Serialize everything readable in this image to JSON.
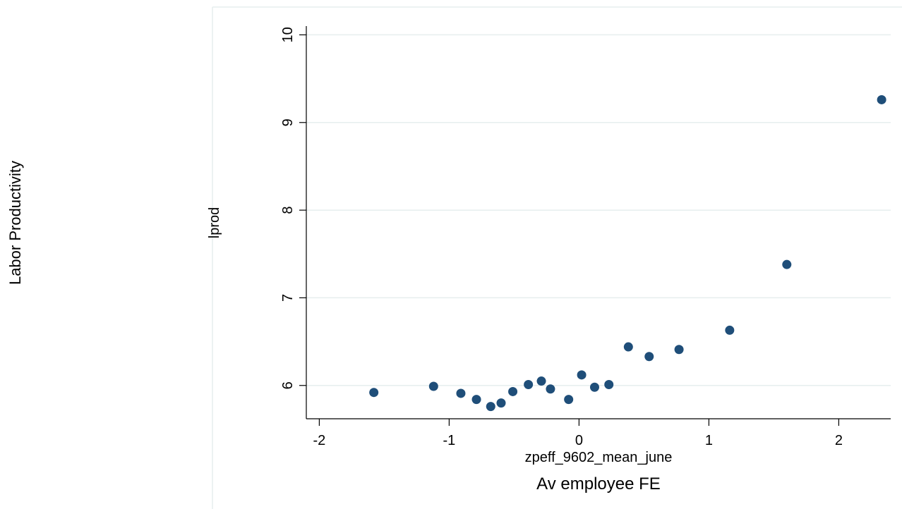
{
  "outer_ylabel": "Labor Productivity",
  "outer_xlabel": "Av employee FE",
  "chart_data": {
    "type": "scatter",
    "title": "",
    "xlabel": "zpeff_9602_mean_june",
    "ylabel": "lprod",
    "xlim": [
      -2.1,
      2.4
    ],
    "ylim": [
      5.62,
      10.1
    ],
    "xticks": [
      -2,
      -1,
      0,
      1,
      2
    ],
    "yticks": [
      6,
      7,
      8,
      9,
      10
    ],
    "grid": "horizontal",
    "marker_color": "#1f4e79",
    "grid_color": "#e6eeee",
    "points": [
      {
        "x": -1.58,
        "y": 5.92
      },
      {
        "x": -1.12,
        "y": 5.99
      },
      {
        "x": -0.91,
        "y": 5.91
      },
      {
        "x": -0.79,
        "y": 5.84
      },
      {
        "x": -0.68,
        "y": 5.76
      },
      {
        "x": -0.6,
        "y": 5.8
      },
      {
        "x": -0.51,
        "y": 5.93
      },
      {
        "x": -0.39,
        "y": 6.01
      },
      {
        "x": -0.29,
        "y": 6.05
      },
      {
        "x": -0.22,
        "y": 5.96
      },
      {
        "x": -0.08,
        "y": 5.84
      },
      {
        "x": 0.02,
        "y": 6.12
      },
      {
        "x": 0.12,
        "y": 5.98
      },
      {
        "x": 0.23,
        "y": 6.01
      },
      {
        "x": 0.38,
        "y": 6.44
      },
      {
        "x": 0.54,
        "y": 6.33
      },
      {
        "x": 0.77,
        "y": 6.41
      },
      {
        "x": 1.16,
        "y": 6.63
      },
      {
        "x": 1.6,
        "y": 7.38
      },
      {
        "x": 2.33,
        "y": 9.26
      }
    ]
  }
}
